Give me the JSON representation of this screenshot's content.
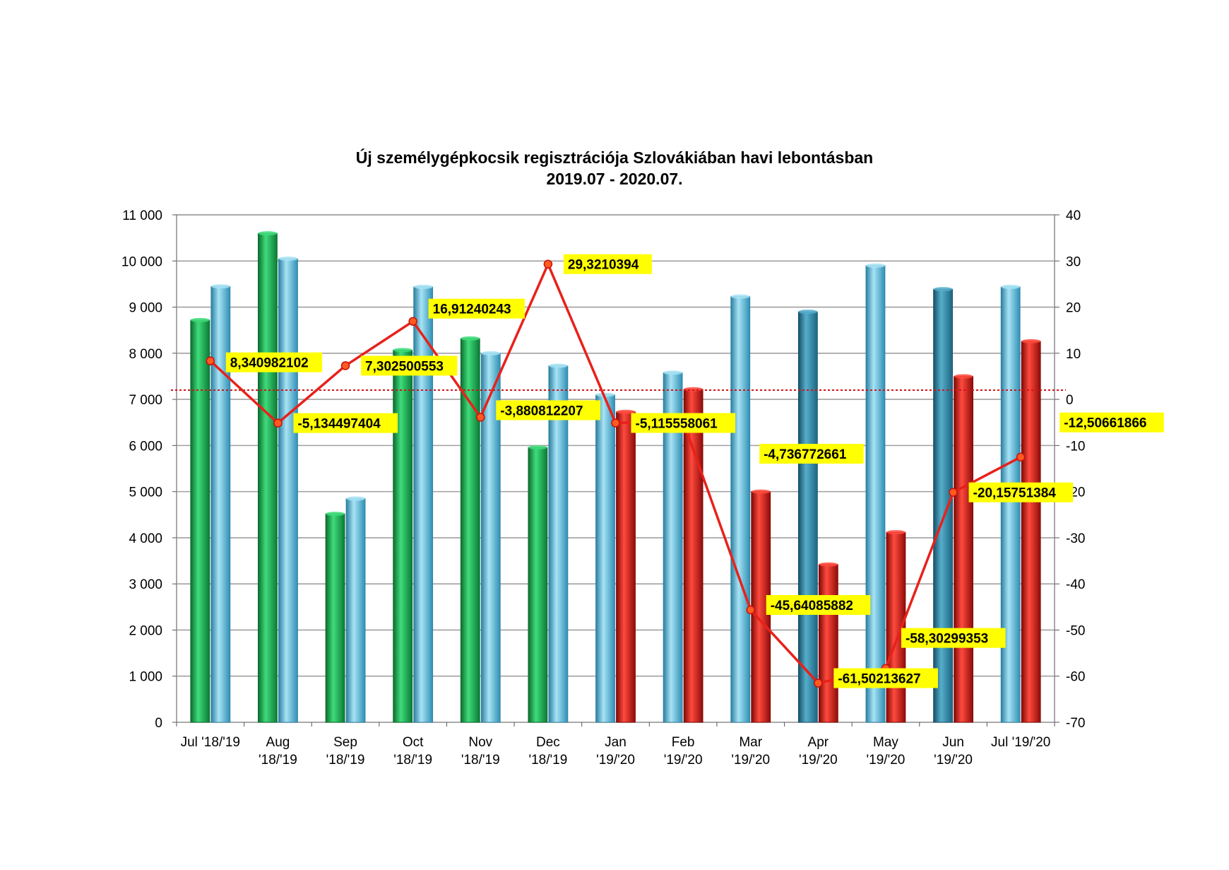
{
  "chart_data": {
    "type": "bar",
    "title": "Új személygépkocsik regisztrációja Szlovákiában havi lebontásban",
    "subtitle": "2019.07 - 2020.07.",
    "categories": [
      [
        "Jul '18/'19"
      ],
      [
        "Aug",
        "'18/'19"
      ],
      [
        "Sep",
        "'18/'19"
      ],
      [
        "Oct",
        "'18/'19"
      ],
      [
        "Nov",
        "'18/'19"
      ],
      [
        "Dec",
        "'18/'19"
      ],
      [
        "Jan",
        "'19/'20"
      ],
      [
        "Feb",
        "'19/'20"
      ],
      [
        "Mar",
        "'19/'20"
      ],
      [
        "Apr",
        "'19/'20"
      ],
      [
        "May",
        "'19/'20"
      ],
      [
        "Jun",
        "'19/'20"
      ],
      [
        "Jul '19/'20"
      ]
    ],
    "bar_pairs": [
      {
        "first": 8720,
        "second": 9450
      },
      {
        "first": 10600,
        "second": 10050
      },
      {
        "first": 4520,
        "second": 4850
      },
      {
        "first": 8070,
        "second": 9440
      },
      {
        "first": 8320,
        "second": 8000
      },
      {
        "first": 5960,
        "second": 7730
      },
      {
        "first": 7100,
        "second": 6730
      },
      {
        "first": 7580,
        "second": 7220
      },
      {
        "first": 9230,
        "second": 5000
      },
      {
        "first": 8900,
        "second": 3420
      },
      {
        "first": 9900,
        "second": 4120
      },
      {
        "first": 9390,
        "second": 7500
      },
      {
        "first": 9440,
        "second": 8260
      }
    ],
    "bar_styles": [
      [
        "green",
        "blue"
      ],
      [
        "green",
        "blue"
      ],
      [
        "green",
        "blue"
      ],
      [
        "green",
        "blue"
      ],
      [
        "green",
        "blue"
      ],
      [
        "green",
        "blue"
      ],
      [
        "blue",
        "red"
      ],
      [
        "blue",
        "red"
      ],
      [
        "blue",
        "red"
      ],
      [
        "teal",
        "red"
      ],
      [
        "blue",
        "red"
      ],
      [
        "teal",
        "red"
      ],
      [
        "blue",
        "red"
      ]
    ],
    "line": {
      "values": [
        8.340982102,
        -5.134497404,
        7.302500553,
        16.91240243,
        -3.880812207,
        29.3210394,
        -5.115558061,
        -4.736772661,
        -45.64085882,
        -61.50213627,
        -58.30299353,
        -20.15751384,
        -12.50661866
      ],
      "labels": [
        "8,340982102",
        "-5,134497404",
        "7,302500553",
        "16,91240243",
        "-3,880812207",
        "29,3210394",
        "-5,115558061",
        "-4,736772661",
        "-45,64085882",
        "-61,50213627",
        "-58,30299353",
        "-20,15751384",
        "-12,50661866"
      ],
      "color": "#e8211a"
    },
    "reference_line_value": 2,
    "y_left": {
      "min": 0,
      "max": 11000,
      "step": 1000,
      "tick_labels": [
        "0",
        "1 000",
        "2 000",
        "3 000",
        "4 000",
        "5 000",
        "6 000",
        "7 000",
        "8 000",
        "9 000",
        "10 000",
        "11 000"
      ]
    },
    "y_right": {
      "min": -70,
      "max": 40,
      "step": 10,
      "tick_labels": [
        "-70",
        "-60",
        "-50",
        "-40",
        "-30",
        "-20",
        "-10",
        "0",
        "10",
        "20",
        "30",
        "40"
      ]
    },
    "colors": {
      "green": "#12a84a",
      "blue": "#4db3d6",
      "teal": "#2a86a6",
      "red": "#c8100e",
      "label_bg": "#ffff00",
      "grid": "#a0a0a0"
    },
    "grid": true,
    "legend": "none"
  }
}
